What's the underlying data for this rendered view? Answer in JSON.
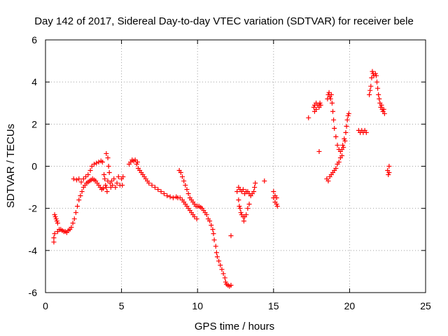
{
  "chart_data": {
    "type": "scatter",
    "title": "Day 142 of 2017, Sidereal Day-to-day VTEC variation (SDTVAR) for receiver bele",
    "xlabel": "GPS time / hours",
    "ylabel": "SDTVAR / TECUs",
    "xlim": [
      0,
      25
    ],
    "ylim": [
      -6,
      6
    ],
    "xticks": [
      0,
      5,
      10,
      15,
      20,
      25
    ],
    "yticks": [
      -6,
      -4,
      -2,
      0,
      2,
      4,
      6
    ],
    "grid": true,
    "marker": "+",
    "marker_color": "#ff0000",
    "points": [
      [
        0.55,
        -3.6
      ],
      [
        0.55,
        -3.4
      ],
      [
        0.6,
        -3.2
      ],
      [
        0.6,
        -2.3
      ],
      [
        0.65,
        -2.4
      ],
      [
        0.7,
        -2.5
      ],
      [
        0.75,
        -2.6
      ],
      [
        0.8,
        -2.7
      ],
      [
        0.8,
        -3.1
      ],
      [
        0.9,
        -3.0
      ],
      [
        1.0,
        -3.0
      ],
      [
        1.1,
        -3.05
      ],
      [
        1.2,
        -3.1
      ],
      [
        1.3,
        -3.1
      ],
      [
        1.4,
        -3.15
      ],
      [
        1.5,
        -3.05
      ],
      [
        1.6,
        -3.0
      ],
      [
        1.7,
        -2.9
      ],
      [
        1.8,
        -2.7
      ],
      [
        1.85,
        -0.6
      ],
      [
        1.9,
        -2.5
      ],
      [
        2.0,
        -2.2
      ],
      [
        2.05,
        -0.65
      ],
      [
        2.1,
        -1.9
      ],
      [
        2.2,
        -1.6
      ],
      [
        2.2,
        -0.6
      ],
      [
        2.3,
        -1.4
      ],
      [
        2.35,
        -0.75
      ],
      [
        2.4,
        -1.2
      ],
      [
        2.5,
        -1.0
      ],
      [
        2.5,
        -0.6
      ],
      [
        2.6,
        -0.9
      ],
      [
        2.65,
        -0.5
      ],
      [
        2.7,
        -0.8
      ],
      [
        2.8,
        -0.4
      ],
      [
        2.8,
        -0.75
      ],
      [
        2.9,
        -0.7
      ],
      [
        2.95,
        -0.2
      ],
      [
        3.0,
        -0.65
      ],
      [
        3.05,
        0.0
      ],
      [
        3.1,
        -0.6
      ],
      [
        3.2,
        0.1
      ],
      [
        3.2,
        -0.65
      ],
      [
        3.3,
        -0.7
      ],
      [
        3.35,
        0.15
      ],
      [
        3.4,
        -0.8
      ],
      [
        3.5,
        0.2
      ],
      [
        3.5,
        -0.9
      ],
      [
        3.6,
        -1.0
      ],
      [
        3.65,
        0.25
      ],
      [
        3.7,
        -1.1
      ],
      [
        3.75,
        0.2
      ],
      [
        3.8,
        -1.05
      ],
      [
        3.85,
        -0.4
      ],
      [
        3.9,
        -0.6
      ],
      [
        3.95,
        -0.9
      ],
      [
        4.0,
        0.6
      ],
      [
        4.0,
        -1.0
      ],
      [
        4.05,
        -1.2
      ],
      [
        4.1,
        0.4
      ],
      [
        4.1,
        -0.7
      ],
      [
        4.15,
        0.0
      ],
      [
        4.2,
        -0.3
      ],
      [
        4.25,
        -0.8
      ],
      [
        4.3,
        -1.0
      ],
      [
        4.35,
        -0.7
      ],
      [
        4.4,
        -0.9
      ],
      [
        4.5,
        -0.6
      ],
      [
        4.6,
        -1.0
      ],
      [
        4.7,
        -0.8
      ],
      [
        4.8,
        -0.5
      ],
      [
        4.9,
        -0.9
      ],
      [
        5.0,
        -0.6
      ],
      [
        5.05,
        -0.9
      ],
      [
        5.1,
        -0.5
      ],
      [
        5.5,
        0.1
      ],
      [
        5.6,
        0.2
      ],
      [
        5.7,
        0.3
      ],
      [
        5.8,
        0.25
      ],
      [
        5.9,
        0.3
      ],
      [
        6.0,
        0.1
      ],
      [
        6.05,
        0.2
      ],
      [
        6.1,
        -0.1
      ],
      [
        6.2,
        -0.2
      ],
      [
        6.3,
        -0.3
      ],
      [
        6.4,
        -0.4
      ],
      [
        6.5,
        -0.5
      ],
      [
        6.6,
        -0.6
      ],
      [
        6.7,
        -0.7
      ],
      [
        6.8,
        -0.8
      ],
      [
        7.0,
        -0.9
      ],
      [
        7.2,
        -1.0
      ],
      [
        7.4,
        -1.1
      ],
      [
        7.6,
        -1.2
      ],
      [
        7.8,
        -1.3
      ],
      [
        8.0,
        -1.4
      ],
      [
        8.2,
        -1.45
      ],
      [
        8.4,
        -1.5
      ],
      [
        8.6,
        -1.45
      ],
      [
        8.7,
        -1.5
      ],
      [
        8.8,
        -0.2
      ],
      [
        8.85,
        -1.5
      ],
      [
        8.9,
        -0.3
      ],
      [
        9.0,
        -0.5
      ],
      [
        9.0,
        -1.6
      ],
      [
        9.1,
        -0.7
      ],
      [
        9.1,
        -1.7
      ],
      [
        9.2,
        -0.9
      ],
      [
        9.2,
        -1.8
      ],
      [
        9.3,
        -1.1
      ],
      [
        9.3,
        -1.9
      ],
      [
        9.4,
        -1.3
      ],
      [
        9.4,
        -2.0
      ],
      [
        9.5,
        -1.5
      ],
      [
        9.5,
        -2.1
      ],
      [
        9.6,
        -1.6
      ],
      [
        9.6,
        -2.2
      ],
      [
        9.7,
        -1.7
      ],
      [
        9.7,
        -2.3
      ],
      [
        9.8,
        -1.8
      ],
      [
        9.8,
        -2.4
      ],
      [
        9.9,
        -1.9
      ],
      [
        9.95,
        -2.5
      ],
      [
        10.0,
        -1.9
      ],
      [
        10.1,
        -1.9
      ],
      [
        10.2,
        -1.95
      ],
      [
        10.3,
        -2.0
      ],
      [
        10.4,
        -2.1
      ],
      [
        10.5,
        -2.2
      ],
      [
        10.6,
        -2.3
      ],
      [
        10.7,
        -2.5
      ],
      [
        10.8,
        -2.6
      ],
      [
        10.9,
        -2.8
      ],
      [
        11.0,
        -3.0
      ],
      [
        11.05,
        -3.2
      ],
      [
        11.1,
        -3.5
      ],
      [
        11.2,
        -3.8
      ],
      [
        11.25,
        -4.1
      ],
      [
        11.3,
        -4.3
      ],
      [
        11.4,
        -4.5
      ],
      [
        11.5,
        -4.7
      ],
      [
        11.6,
        -4.9
      ],
      [
        11.7,
        -5.1
      ],
      [
        11.8,
        -5.3
      ],
      [
        11.85,
        -5.5
      ],
      [
        11.9,
        -5.6
      ],
      [
        12.0,
        -5.65
      ],
      [
        12.1,
        -5.7
      ],
      [
        12.2,
        -5.65
      ],
      [
        12.2,
        -3.3
      ],
      [
        12.6,
        -1.2
      ],
      [
        12.7,
        -1.0
      ],
      [
        12.7,
        -1.6
      ],
      [
        12.75,
        -1.9
      ],
      [
        12.8,
        -1.1
      ],
      [
        12.8,
        -2.0
      ],
      [
        12.85,
        -2.2
      ],
      [
        12.9,
        -1.2
      ],
      [
        12.9,
        -2.3
      ],
      [
        13.0,
        -1.1
      ],
      [
        13.0,
        -2.4
      ],
      [
        13.05,
        -2.6
      ],
      [
        13.1,
        -1.3
      ],
      [
        13.1,
        -2.4
      ],
      [
        13.2,
        -1.2
      ],
      [
        13.2,
        -2.3
      ],
      [
        13.3,
        -1.2
      ],
      [
        13.3,
        -2.0
      ],
      [
        13.4,
        -1.3
      ],
      [
        13.4,
        -1.8
      ],
      [
        13.5,
        -1.4
      ],
      [
        13.6,
        -1.3
      ],
      [
        13.7,
        -1.2
      ],
      [
        13.75,
        -1.0
      ],
      [
        13.8,
        -0.8
      ],
      [
        14.4,
        -0.7
      ],
      [
        15.0,
        -1.2
      ],
      [
        15.0,
        -1.5
      ],
      [
        15.1,
        -1.4
      ],
      [
        15.1,
        -1.7
      ],
      [
        15.2,
        -1.8
      ],
      [
        15.2,
        -1.5
      ],
      [
        15.25,
        -1.9
      ],
      [
        17.3,
        2.3
      ],
      [
        17.65,
        2.8
      ],
      [
        17.7,
        2.6
      ],
      [
        17.7,
        2.9
      ],
      [
        17.8,
        3.0
      ],
      [
        17.8,
        2.7
      ],
      [
        17.9,
        2.9
      ],
      [
        18.0,
        2.9
      ],
      [
        18.0,
        2.8
      ],
      [
        18.0,
        0.7
      ],
      [
        18.05,
        3.0
      ],
      [
        18.1,
        2.9
      ],
      [
        18.5,
        -0.6
      ],
      [
        18.55,
        3.2
      ],
      [
        18.6,
        3.4
      ],
      [
        18.6,
        -0.7
      ],
      [
        18.65,
        3.5
      ],
      [
        18.7,
        3.3
      ],
      [
        18.7,
        -0.5
      ],
      [
        18.75,
        3.2
      ],
      [
        18.8,
        3.4
      ],
      [
        18.8,
        -0.4
      ],
      [
        18.85,
        3.0
      ],
      [
        18.9,
        2.6
      ],
      [
        18.9,
        -0.3
      ],
      [
        18.95,
        2.2
      ],
      [
        19.0,
        1.8
      ],
      [
        19.0,
        -0.2
      ],
      [
        19.1,
        1.4
      ],
      [
        19.1,
        -0.1
      ],
      [
        19.2,
        1.0
      ],
      [
        19.2,
        0.1
      ],
      [
        19.3,
        0.8
      ],
      [
        19.3,
        0.2
      ],
      [
        19.4,
        0.7
      ],
      [
        19.4,
        0.4
      ],
      [
        19.5,
        0.8
      ],
      [
        19.5,
        0.5
      ],
      [
        19.55,
        1.0
      ],
      [
        19.6,
        0.9
      ],
      [
        19.65,
        1.3
      ],
      [
        19.7,
        1.2
      ],
      [
        19.75,
        1.6
      ],
      [
        19.8,
        1.9
      ],
      [
        19.85,
        2.2
      ],
      [
        19.9,
        2.4
      ],
      [
        19.95,
        2.5
      ],
      [
        20.6,
        1.7
      ],
      [
        20.7,
        1.6
      ],
      [
        20.8,
        1.7
      ],
      [
        20.9,
        1.6
      ],
      [
        21.0,
        1.7
      ],
      [
        21.1,
        1.6
      ],
      [
        21.3,
        3.4
      ],
      [
        21.35,
        3.6
      ],
      [
        21.4,
        3.8
      ],
      [
        21.45,
        4.2
      ],
      [
        21.5,
        4.5
      ],
      [
        21.55,
        4.4
      ],
      [
        21.6,
        4.3
      ],
      [
        21.7,
        4.4
      ],
      [
        21.75,
        4.3
      ],
      [
        21.8,
        4.0
      ],
      [
        21.85,
        3.7
      ],
      [
        21.9,
        3.4
      ],
      [
        21.95,
        3.2
      ],
      [
        22.0,
        3.0
      ],
      [
        22.05,
        2.8
      ],
      [
        22.1,
        2.9
      ],
      [
        22.15,
        2.7
      ],
      [
        22.2,
        2.6
      ],
      [
        22.25,
        2.7
      ],
      [
        22.3,
        2.5
      ],
      [
        22.5,
        -0.2
      ],
      [
        22.55,
        -0.4
      ],
      [
        22.6,
        -0.3
      ],
      [
        22.6,
        0.0
      ]
    ]
  }
}
